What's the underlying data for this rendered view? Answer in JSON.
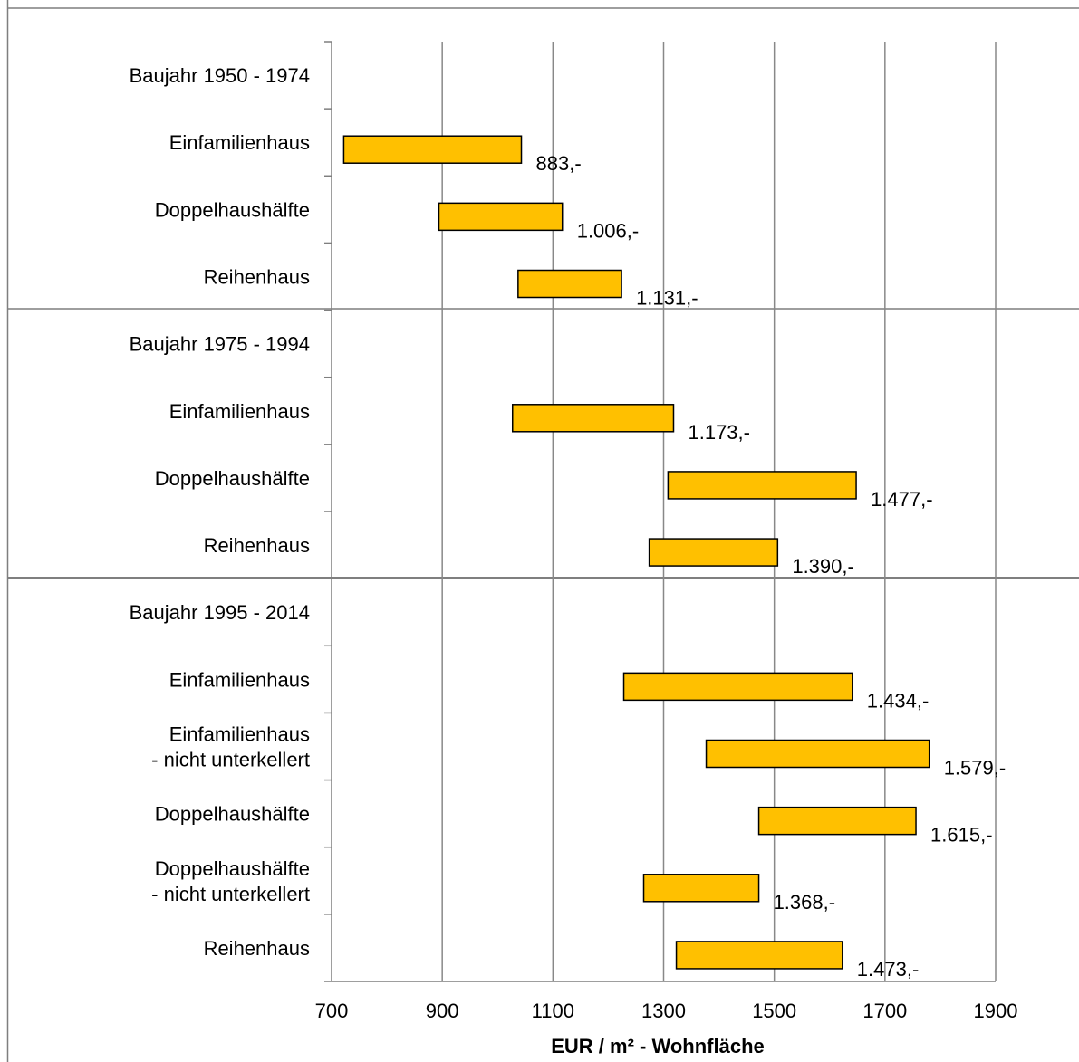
{
  "chart_data": {
    "type": "bar",
    "subtype": "floating-range-horizontal",
    "title": "",
    "xlabel": "EUR / m² - Wohnfläche",
    "ylabel": "",
    "xlim": [
      700,
      1900
    ],
    "xticks": [
      700,
      900,
      1100,
      1300,
      1500,
      1700,
      1900
    ],
    "grid": true,
    "bar_color": "#FFC000",
    "bar_border_color": "#000000",
    "groups": [
      {
        "label": "Baujahr 1950 - 1974",
        "rows": [
          {
            "category": [
              "Einfamilienhaus"
            ],
            "low": 722,
            "high": 1043,
            "value_label": "883,-"
          },
          {
            "category": [
              "Doppelhaushälfte"
            ],
            "low": 894,
            "high": 1117,
            "value_label": "1.006,-"
          },
          {
            "category": [
              "Reihenhaus"
            ],
            "low": 1037,
            "high": 1224,
            "value_label": "1.131,-"
          }
        ]
      },
      {
        "label": "Baujahr 1975 - 1994",
        "rows": [
          {
            "category": [
              "Einfamilienhaus"
            ],
            "low": 1027,
            "high": 1318,
            "value_label": "1.173,-"
          },
          {
            "category": [
              "Doppelhaushälfte"
            ],
            "low": 1308,
            "high": 1648,
            "value_label": "1.477,-"
          },
          {
            "category": [
              "Reihenhaus"
            ],
            "low": 1274,
            "high": 1506,
            "value_label": "1.390,-"
          }
        ]
      },
      {
        "label": "Baujahr 1995 - 2014",
        "rows": [
          {
            "category": [
              "Einfamilienhaus"
            ],
            "low": 1228,
            "high": 1641,
            "value_label": "1.434,-"
          },
          {
            "category": [
              "Einfamilienhaus",
              "- nicht unterkellert"
            ],
            "low": 1377,
            "high": 1780,
            "value_label": "1.579,-"
          },
          {
            "category": [
              "Doppelhaushälfte"
            ],
            "low": 1472,
            "high": 1756,
            "value_label": "1.615,-"
          },
          {
            "category": [
              "Doppelhaushälfte",
              "- nicht unterkellert"
            ],
            "low": 1264,
            "high": 1472,
            "value_label": "1.368,-"
          },
          {
            "category": [
              "Reihenhaus"
            ],
            "low": 1323,
            "high": 1623,
            "value_label": "1.473,-"
          }
        ]
      }
    ]
  }
}
